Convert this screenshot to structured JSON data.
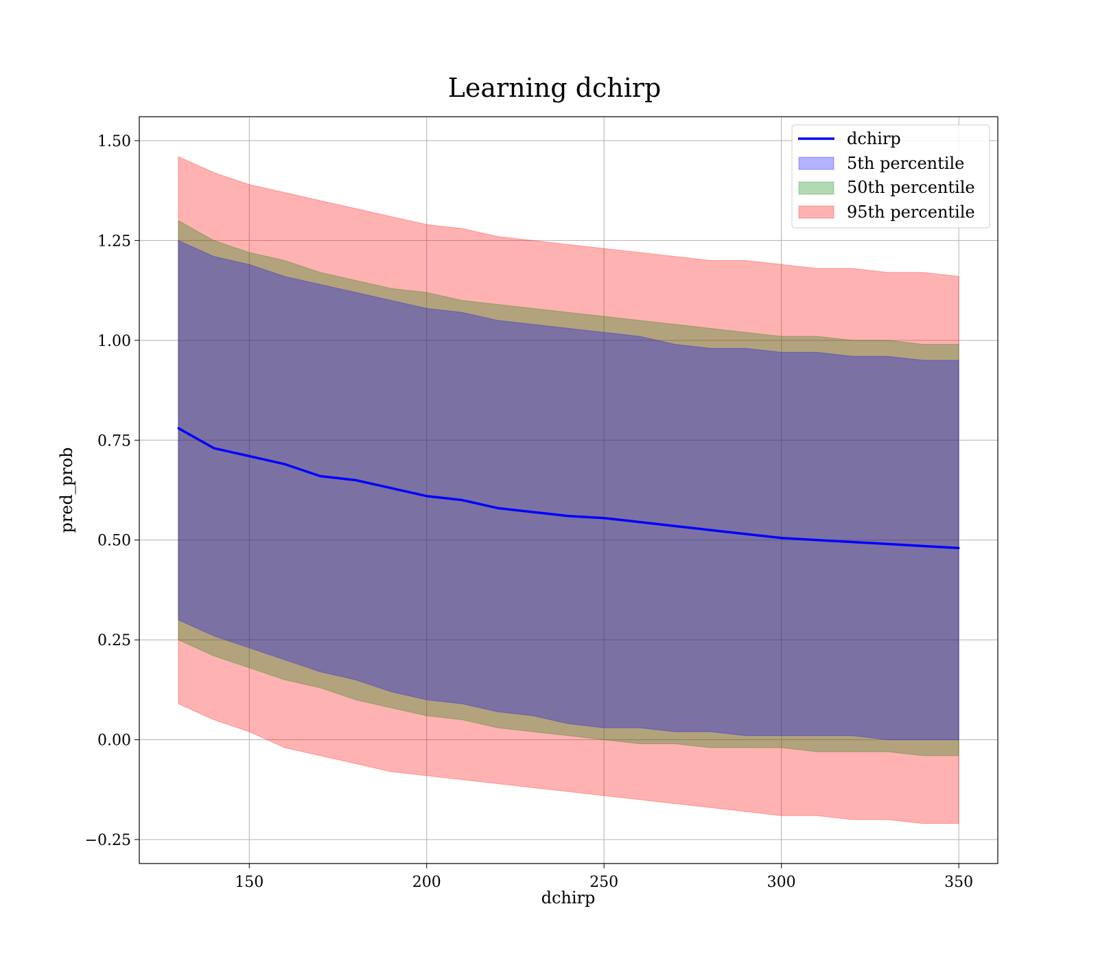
{
  "chart_data": {
    "type": "line",
    "title": "Learning dchirp",
    "xlabel": "dchirp",
    "ylabel": "pred_prob",
    "xlim": [
      119,
      361
    ],
    "ylim": [
      -0.31,
      1.56
    ],
    "xticks": [
      150,
      200,
      250,
      300,
      350
    ],
    "xtick_labels": [
      "150",
      "200",
      "250",
      "300",
      "350"
    ],
    "yticks": [
      -0.25,
      0.0,
      0.25,
      0.5,
      0.75,
      1.0,
      1.25,
      1.5
    ],
    "ytick_labels": [
      "−0.25",
      "0.00",
      "0.25",
      "0.50",
      "0.75",
      "1.00",
      "1.25",
      "1.50"
    ],
    "grid": true,
    "legend_position": "top-right",
    "x": [
      130,
      140,
      150,
      160,
      170,
      180,
      190,
      200,
      210,
      220,
      230,
      240,
      250,
      260,
      270,
      280,
      290,
      300,
      310,
      320,
      330,
      340,
      350
    ],
    "series": [
      {
        "name": "dchirp",
        "kind": "line",
        "color": "#0000ff",
        "values": [
          0.78,
          0.73,
          0.71,
          0.69,
          0.66,
          0.65,
          0.63,
          0.61,
          0.6,
          0.58,
          0.57,
          0.56,
          0.555,
          0.545,
          0.535,
          0.525,
          0.515,
          0.505,
          0.5,
          0.495,
          0.49,
          0.485,
          0.48
        ]
      },
      {
        "name": "5th percentile",
        "kind": "band",
        "color": "#0000ff",
        "lower": [
          0.3,
          0.26,
          0.23,
          0.2,
          0.17,
          0.15,
          0.12,
          0.1,
          0.09,
          0.07,
          0.06,
          0.04,
          0.03,
          0.03,
          0.02,
          0.02,
          0.01,
          0.01,
          0.01,
          0.01,
          0.0,
          0.0,
          0.0
        ],
        "upper": [
          1.25,
          1.21,
          1.19,
          1.16,
          1.14,
          1.12,
          1.1,
          1.08,
          1.07,
          1.05,
          1.04,
          1.03,
          1.02,
          1.01,
          0.99,
          0.98,
          0.98,
          0.97,
          0.97,
          0.96,
          0.96,
          0.95,
          0.95
        ]
      },
      {
        "name": "50th percentile",
        "kind": "band",
        "color": "#008000",
        "lower": [
          0.25,
          0.21,
          0.18,
          0.15,
          0.13,
          0.1,
          0.08,
          0.06,
          0.05,
          0.03,
          0.02,
          0.01,
          0.0,
          -0.01,
          -0.01,
          -0.02,
          -0.02,
          -0.02,
          -0.03,
          -0.03,
          -0.03,
          -0.04,
          -0.04
        ],
        "upper": [
          1.3,
          1.25,
          1.22,
          1.2,
          1.17,
          1.15,
          1.13,
          1.12,
          1.1,
          1.09,
          1.08,
          1.07,
          1.06,
          1.05,
          1.04,
          1.03,
          1.02,
          1.01,
          1.01,
          1.0,
          1.0,
          0.99,
          0.99
        ]
      },
      {
        "name": "95th percentile",
        "kind": "band",
        "color": "#ff0000",
        "lower": [
          0.09,
          0.05,
          0.02,
          -0.02,
          -0.04,
          -0.06,
          -0.08,
          -0.09,
          -0.1,
          -0.11,
          -0.12,
          -0.13,
          -0.14,
          -0.15,
          -0.16,
          -0.17,
          -0.18,
          -0.19,
          -0.19,
          -0.2,
          -0.2,
          -0.21,
          -0.21
        ],
        "upper": [
          1.46,
          1.42,
          1.39,
          1.37,
          1.35,
          1.33,
          1.31,
          1.29,
          1.28,
          1.26,
          1.25,
          1.24,
          1.23,
          1.22,
          1.21,
          1.2,
          1.2,
          1.19,
          1.18,
          1.18,
          1.17,
          1.17,
          1.16
        ]
      }
    ]
  }
}
